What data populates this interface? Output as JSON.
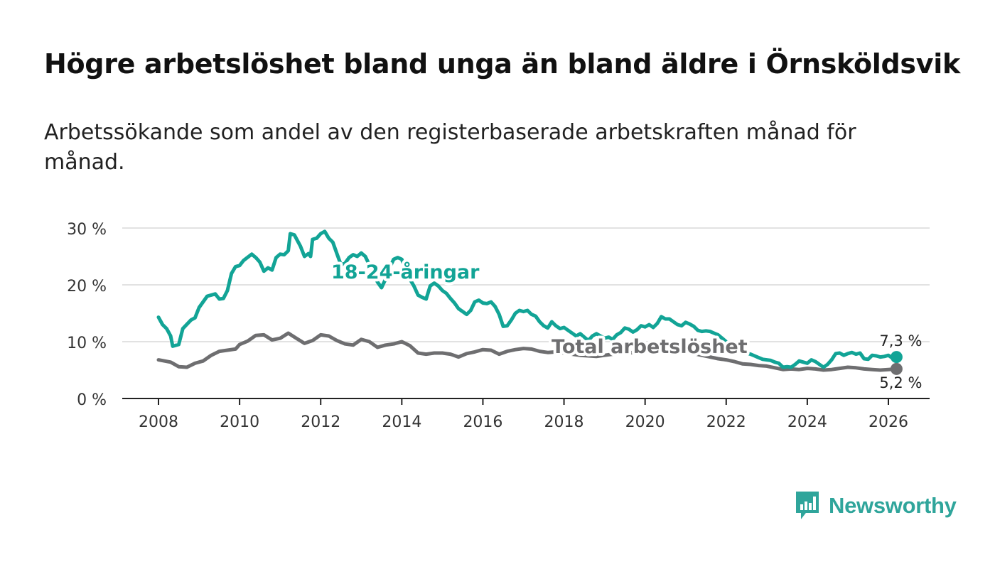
{
  "title": "Högre arbetslöshet bland unga än bland äldre i Örnsköldsvik",
  "subtitle": "Arbetssökande som andel av den registerbaserade arbetskraften månad för månad.",
  "logo": {
    "text": "Newsworthy",
    "icon": "bar-chart-speech-bubble-icon"
  },
  "colors": {
    "youth": "#12a496",
    "total": "#6e6e70",
    "grid": "#d9d9d9",
    "axis": "#222222",
    "logo": "#2fa59b"
  },
  "chart_data": {
    "type": "line",
    "xlabel": "",
    "ylabel": "",
    "xlim": [
      2007.5,
      2027.0
    ],
    "ylim": [
      0,
      30
    ],
    "y_ticks": [
      0,
      10,
      20,
      30
    ],
    "y_tick_labels": [
      "0 %",
      "10 %",
      "20 %",
      "30 %"
    ],
    "x_ticks": [
      2008,
      2010,
      2012,
      2014,
      2016,
      2018,
      2020,
      2022,
      2024,
      2026
    ],
    "x_tick_labels": [
      "2008",
      "2010",
      "2012",
      "2014",
      "2016",
      "2018",
      "2020",
      "2022",
      "2024",
      "2026"
    ],
    "grid": true,
    "series": [
      {
        "name": "Total arbetslöshet",
        "color": "#6e6e70",
        "label": "Total arbetslöshet",
        "end_label": "5,2 %",
        "points": [
          [
            2008.0,
            6.8
          ],
          [
            2008.3,
            6.4
          ],
          [
            2008.5,
            5.6
          ],
          [
            2008.7,
            5.5
          ],
          [
            2008.9,
            6.2
          ],
          [
            2009.1,
            6.6
          ],
          [
            2009.3,
            7.6
          ],
          [
            2009.5,
            8.3
          ],
          [
            2009.7,
            8.5
          ],
          [
            2009.9,
            8.7
          ],
          [
            2010.0,
            9.5
          ],
          [
            2010.2,
            10.1
          ],
          [
            2010.4,
            11.1
          ],
          [
            2010.6,
            11.2
          ],
          [
            2010.8,
            10.3
          ],
          [
            2011.0,
            10.6
          ],
          [
            2011.2,
            11.5
          ],
          [
            2011.4,
            10.6
          ],
          [
            2011.6,
            9.7
          ],
          [
            2011.8,
            10.2
          ],
          [
            2012.0,
            11.2
          ],
          [
            2012.2,
            11.0
          ],
          [
            2012.4,
            10.2
          ],
          [
            2012.6,
            9.6
          ],
          [
            2012.8,
            9.4
          ],
          [
            2013.0,
            10.4
          ],
          [
            2013.2,
            10.0
          ],
          [
            2013.4,
            9.0
          ],
          [
            2013.6,
            9.4
          ],
          [
            2013.8,
            9.6
          ],
          [
            2014.0,
            10.0
          ],
          [
            2014.2,
            9.3
          ],
          [
            2014.4,
            8.0
          ],
          [
            2014.6,
            7.8
          ],
          [
            2014.8,
            8.0
          ],
          [
            2015.0,
            8.0
          ],
          [
            2015.2,
            7.8
          ],
          [
            2015.4,
            7.3
          ],
          [
            2015.6,
            7.9
          ],
          [
            2015.8,
            8.2
          ],
          [
            2016.0,
            8.6
          ],
          [
            2016.2,
            8.5
          ],
          [
            2016.4,
            7.8
          ],
          [
            2016.6,
            8.3
          ],
          [
            2016.8,
            8.6
          ],
          [
            2017.0,
            8.8
          ],
          [
            2017.2,
            8.7
          ],
          [
            2017.4,
            8.3
          ],
          [
            2017.6,
            8.1
          ],
          [
            2017.8,
            8.2
          ],
          [
            2018.0,
            8.0
          ],
          [
            2018.2,
            7.8
          ],
          [
            2018.4,
            7.6
          ],
          [
            2018.6,
            7.5
          ],
          [
            2018.8,
            7.4
          ],
          [
            2019.0,
            7.6
          ],
          [
            2019.2,
            7.8
          ],
          [
            2019.4,
            8.0
          ],
          [
            2019.6,
            8.1
          ],
          [
            2019.8,
            8.0
          ],
          [
            2020.0,
            8.3
          ],
          [
            2020.2,
            8.5
          ],
          [
            2020.4,
            8.7
          ],
          [
            2020.6,
            8.6
          ],
          [
            2020.8,
            8.4
          ],
          [
            2021.0,
            8.2
          ],
          [
            2021.2,
            7.9
          ],
          [
            2021.4,
            7.6
          ],
          [
            2021.6,
            7.3
          ],
          [
            2021.8,
            7.0
          ],
          [
            2022.0,
            6.8
          ],
          [
            2022.2,
            6.5
          ],
          [
            2022.4,
            6.1
          ],
          [
            2022.6,
            6.0
          ],
          [
            2022.8,
            5.8
          ],
          [
            2023.0,
            5.7
          ],
          [
            2023.2,
            5.4
          ],
          [
            2023.4,
            5.1
          ],
          [
            2023.6,
            5.2
          ],
          [
            2023.8,
            5.1
          ],
          [
            2024.0,
            5.3
          ],
          [
            2024.2,
            5.2
          ],
          [
            2024.4,
            5.0
          ],
          [
            2024.6,
            5.1
          ],
          [
            2024.8,
            5.3
          ],
          [
            2025.0,
            5.5
          ],
          [
            2025.2,
            5.4
          ],
          [
            2025.4,
            5.2
          ],
          [
            2025.6,
            5.1
          ],
          [
            2025.8,
            5.0
          ],
          [
            2026.0,
            5.1
          ],
          [
            2026.2,
            5.2
          ]
        ]
      },
      {
        "name": "18-24-åringar",
        "color": "#12a496",
        "label": "18-24-åringar",
        "end_label": "7,3 %",
        "points": [
          [
            2008.0,
            14.3
          ],
          [
            2008.1,
            13.0
          ],
          [
            2008.2,
            12.3
          ],
          [
            2008.3,
            11.0
          ],
          [
            2008.35,
            9.2
          ],
          [
            2008.5,
            9.5
          ],
          [
            2008.6,
            12.3
          ],
          [
            2008.8,
            13.8
          ],
          [
            2008.9,
            14.2
          ],
          [
            2009.0,
            16.0
          ],
          [
            2009.2,
            18.0
          ],
          [
            2009.4,
            18.4
          ],
          [
            2009.5,
            17.5
          ],
          [
            2009.6,
            17.6
          ],
          [
            2009.7,
            19.0
          ],
          [
            2009.8,
            22.0
          ],
          [
            2009.9,
            23.2
          ],
          [
            2010.0,
            23.4
          ],
          [
            2010.1,
            24.3
          ],
          [
            2010.3,
            25.4
          ],
          [
            2010.4,
            24.8
          ],
          [
            2010.5,
            24.0
          ],
          [
            2010.6,
            22.4
          ],
          [
            2010.7,
            23.0
          ],
          [
            2010.8,
            22.6
          ],
          [
            2010.9,
            24.8
          ],
          [
            2011.0,
            25.4
          ],
          [
            2011.1,
            25.3
          ],
          [
            2011.2,
            26.0
          ],
          [
            2011.25,
            29.0
          ],
          [
            2011.35,
            28.8
          ],
          [
            2011.5,
            26.8
          ],
          [
            2011.6,
            25.0
          ],
          [
            2011.7,
            25.5
          ],
          [
            2011.75,
            25.0
          ],
          [
            2011.8,
            28.0
          ],
          [
            2011.9,
            28.2
          ],
          [
            2012.0,
            29.0
          ],
          [
            2012.1,
            29.4
          ],
          [
            2012.2,
            28.2
          ],
          [
            2012.3,
            27.5
          ],
          [
            2012.4,
            25.5
          ],
          [
            2012.5,
            23.5
          ],
          [
            2012.6,
            23.8
          ],
          [
            2012.7,
            24.8
          ],
          [
            2012.8,
            25.3
          ],
          [
            2012.9,
            25.0
          ],
          [
            2013.0,
            25.6
          ],
          [
            2013.1,
            25.0
          ],
          [
            2013.2,
            23.5
          ],
          [
            2013.3,
            22.2
          ],
          [
            2013.4,
            20.5
          ],
          [
            2013.5,
            19.5
          ],
          [
            2013.6,
            21.0
          ],
          [
            2013.7,
            23.0
          ],
          [
            2013.8,
            24.5
          ],
          [
            2013.9,
            24.8
          ],
          [
            2014.0,
            24.5
          ],
          [
            2014.1,
            22.5
          ],
          [
            2014.2,
            21.0
          ],
          [
            2014.3,
            19.8
          ],
          [
            2014.4,
            18.2
          ],
          [
            2014.5,
            17.8
          ],
          [
            2014.6,
            17.5
          ],
          [
            2014.7,
            19.8
          ],
          [
            2014.8,
            20.3
          ],
          [
            2014.9,
            19.8
          ],
          [
            2015.0,
            19.0
          ],
          [
            2015.1,
            18.5
          ],
          [
            2015.2,
            17.6
          ],
          [
            2015.3,
            16.8
          ],
          [
            2015.4,
            15.8
          ],
          [
            2015.5,
            15.3
          ],
          [
            2015.6,
            14.8
          ],
          [
            2015.7,
            15.5
          ],
          [
            2015.8,
            17.0
          ],
          [
            2015.9,
            17.3
          ],
          [
            2016.0,
            16.8
          ],
          [
            2016.1,
            16.7
          ],
          [
            2016.2,
            17.0
          ],
          [
            2016.3,
            16.2
          ],
          [
            2016.4,
            14.8
          ],
          [
            2016.5,
            12.7
          ],
          [
            2016.6,
            12.8
          ],
          [
            2016.7,
            13.8
          ],
          [
            2016.8,
            15.0
          ],
          [
            2016.9,
            15.5
          ],
          [
            2017.0,
            15.3
          ],
          [
            2017.1,
            15.5
          ],
          [
            2017.2,
            14.8
          ],
          [
            2017.3,
            14.5
          ],
          [
            2017.4,
            13.5
          ],
          [
            2017.5,
            12.8
          ],
          [
            2017.6,
            12.4
          ],
          [
            2017.7,
            13.5
          ],
          [
            2017.8,
            12.8
          ],
          [
            2017.9,
            12.3
          ],
          [
            2018.0,
            12.5
          ],
          [
            2018.1,
            12.0
          ],
          [
            2018.2,
            11.5
          ],
          [
            2018.3,
            11.0
          ],
          [
            2018.4,
            11.4
          ],
          [
            2018.5,
            10.8
          ],
          [
            2018.6,
            10.2
          ],
          [
            2018.7,
            11.0
          ],
          [
            2018.8,
            11.4
          ],
          [
            2018.9,
            11.0
          ],
          [
            2019.0,
            10.6
          ],
          [
            2019.1,
            10.8
          ],
          [
            2019.2,
            10.4
          ],
          [
            2019.3,
            11.2
          ],
          [
            2019.4,
            11.6
          ],
          [
            2019.5,
            12.4
          ],
          [
            2019.6,
            12.2
          ],
          [
            2019.7,
            11.7
          ],
          [
            2019.8,
            12.1
          ],
          [
            2019.9,
            12.8
          ],
          [
            2020.0,
            12.6
          ],
          [
            2020.1,
            13.0
          ],
          [
            2020.2,
            12.5
          ],
          [
            2020.3,
            13.2
          ],
          [
            2020.4,
            14.4
          ],
          [
            2020.5,
            14.0
          ],
          [
            2020.6,
            14.0
          ],
          [
            2020.7,
            13.5
          ],
          [
            2020.8,
            13.0
          ],
          [
            2020.9,
            12.8
          ],
          [
            2021.0,
            13.4
          ],
          [
            2021.1,
            13.1
          ],
          [
            2021.2,
            12.7
          ],
          [
            2021.3,
            12.0
          ],
          [
            2021.4,
            11.8
          ],
          [
            2021.5,
            11.9
          ],
          [
            2021.6,
            11.8
          ],
          [
            2021.7,
            11.5
          ],
          [
            2021.8,
            11.2
          ],
          [
            2021.9,
            10.6
          ],
          [
            2022.0,
            10.0
          ],
          [
            2022.1,
            9.4
          ],
          [
            2022.2,
            9.0
          ],
          [
            2022.3,
            8.5
          ],
          [
            2022.4,
            8.2
          ],
          [
            2022.5,
            8.0
          ],
          [
            2022.6,
            7.8
          ],
          [
            2022.7,
            7.5
          ],
          [
            2022.8,
            7.2
          ],
          [
            2022.9,
            6.9
          ],
          [
            2023.0,
            6.8
          ],
          [
            2023.1,
            6.7
          ],
          [
            2023.2,
            6.4
          ],
          [
            2023.3,
            6.2
          ],
          [
            2023.4,
            5.5
          ],
          [
            2023.5,
            5.6
          ],
          [
            2023.6,
            5.5
          ],
          [
            2023.7,
            6.0
          ],
          [
            2023.8,
            6.6
          ],
          [
            2023.9,
            6.4
          ],
          [
            2024.0,
            6.2
          ],
          [
            2024.1,
            6.8
          ],
          [
            2024.2,
            6.5
          ],
          [
            2024.3,
            6.0
          ],
          [
            2024.4,
            5.5
          ],
          [
            2024.5,
            6.0
          ],
          [
            2024.6,
            6.8
          ],
          [
            2024.7,
            7.9
          ],
          [
            2024.8,
            8.0
          ],
          [
            2024.9,
            7.6
          ],
          [
            2025.0,
            7.9
          ],
          [
            2025.1,
            8.1
          ],
          [
            2025.2,
            7.8
          ],
          [
            2025.3,
            8.0
          ],
          [
            2025.4,
            7.0
          ],
          [
            2025.5,
            6.9
          ],
          [
            2025.6,
            7.6
          ],
          [
            2025.7,
            7.5
          ],
          [
            2025.8,
            7.3
          ],
          [
            2025.9,
            7.4
          ],
          [
            2026.0,
            7.6
          ],
          [
            2026.1,
            7.1
          ],
          [
            2026.2,
            7.3
          ]
        ]
      }
    ]
  }
}
